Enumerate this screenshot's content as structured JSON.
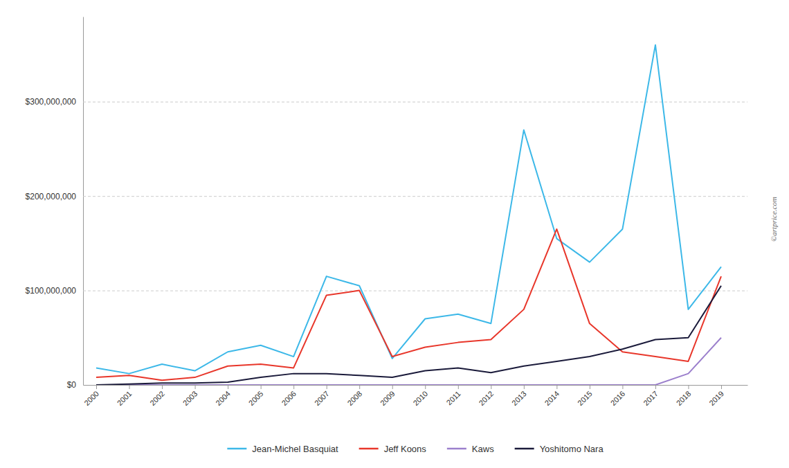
{
  "chart_data": {
    "type": "line",
    "x": [
      2000,
      2001,
      2002,
      2003,
      2004,
      2005,
      2006,
      2007,
      2008,
      2009,
      2010,
      2011,
      2012,
      2013,
      2014,
      2015,
      2016,
      2017,
      2018,
      2019
    ],
    "series": [
      {
        "name": "Jean-Michel Basquiat",
        "color": "#3CB8E8",
        "values": [
          18000000,
          12000000,
          22000000,
          15000000,
          35000000,
          42000000,
          30000000,
          115000000,
          105000000,
          28000000,
          70000000,
          75000000,
          65000000,
          270000000,
          155000000,
          130000000,
          165000000,
          360000000,
          80000000,
          125000000
        ]
      },
      {
        "name": "Jeff Koons",
        "color": "#E8362A",
        "values": [
          8000000,
          10000000,
          5000000,
          8000000,
          20000000,
          22000000,
          18000000,
          95000000,
          100000000,
          30000000,
          40000000,
          45000000,
          48000000,
          80000000,
          165000000,
          65000000,
          35000000,
          30000000,
          25000000,
          115000000
        ]
      },
      {
        "name": "Kaws",
        "color": "#9B7FCC",
        "values": [
          0,
          0,
          0,
          0,
          0,
          0,
          0,
          0,
          0,
          0,
          0,
          0,
          0,
          0,
          0,
          0,
          0,
          0,
          12000000,
          50000000
        ]
      },
      {
        "name": "Yoshitomo Nara",
        "color": "#1A1A3A",
        "values": [
          0,
          1000000,
          2000000,
          2000000,
          3000000,
          8000000,
          12000000,
          12000000,
          10000000,
          8000000,
          15000000,
          18000000,
          13000000,
          20000000,
          25000000,
          30000000,
          38000000,
          48000000,
          50000000,
          105000000
        ]
      }
    ],
    "xlim": [
      1999.6,
      2019.8
    ],
    "xticks": [
      2000,
      2001,
      2002,
      2003,
      2004,
      2005,
      2006,
      2007,
      2008,
      2009,
      2010,
      2011,
      2012,
      2013,
      2014,
      2015,
      2016,
      2017,
      2018,
      2019
    ],
    "ylim": [
      0,
      390000000
    ],
    "yticks": [
      {
        "value": 0,
        "label": "$0"
      },
      {
        "value": 100000000,
        "label": "$100,000,000"
      },
      {
        "value": 200000000,
        "label": "$200,000,000"
      },
      {
        "value": 300000000,
        "label": "$300,000,000"
      }
    ],
    "grid": true,
    "legend": "bottom",
    "annotations": [
      "©artprice.com"
    ]
  }
}
